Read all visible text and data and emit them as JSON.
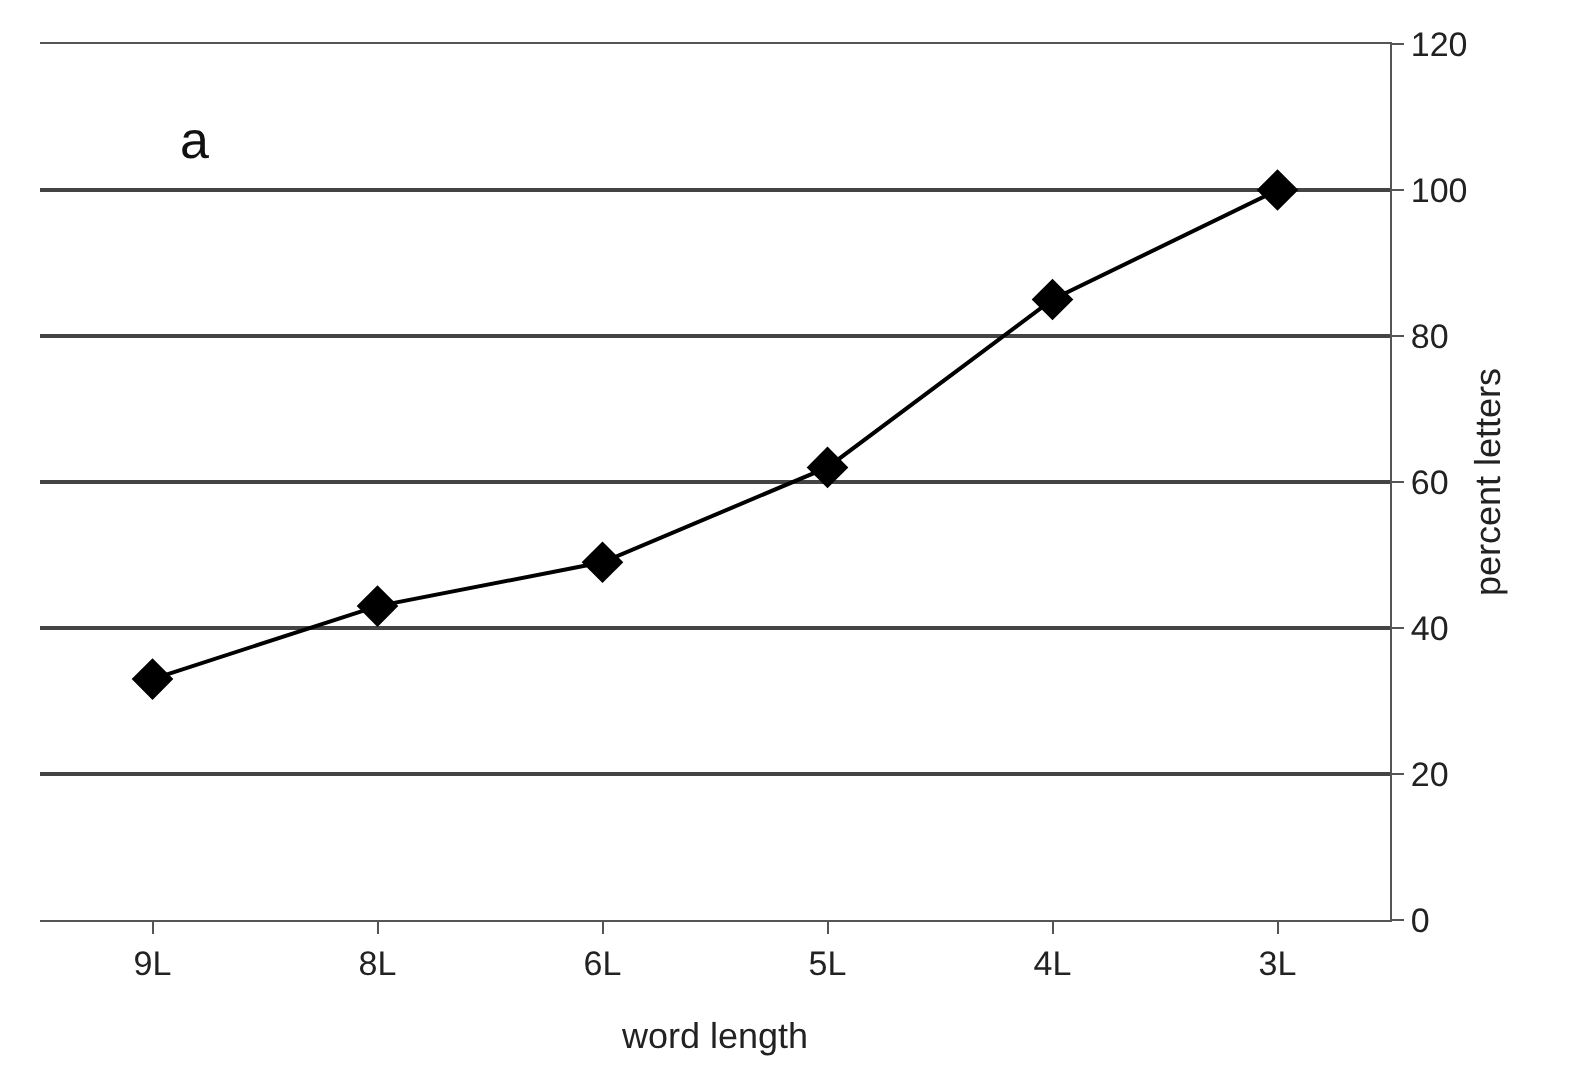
{
  "chart_data": {
    "type": "line",
    "xlabel": "word length",
    "ylabel": "percent letters",
    "annotations": [
      "a"
    ],
    "categories": [
      "9L",
      "8L",
      "6L",
      "5L",
      "4L",
      "3L"
    ],
    "series": [
      {
        "color": "#000000",
        "values": [
          33,
          43,
          49,
          62,
          85,
          100
        ]
      }
    ],
    "ylim": [
      0,
      120
    ],
    "yticks": [
      0,
      20,
      40,
      60,
      80,
      100,
      120
    ],
    "grid": "y",
    "marker": "diamond",
    "line_style": "solid"
  }
}
